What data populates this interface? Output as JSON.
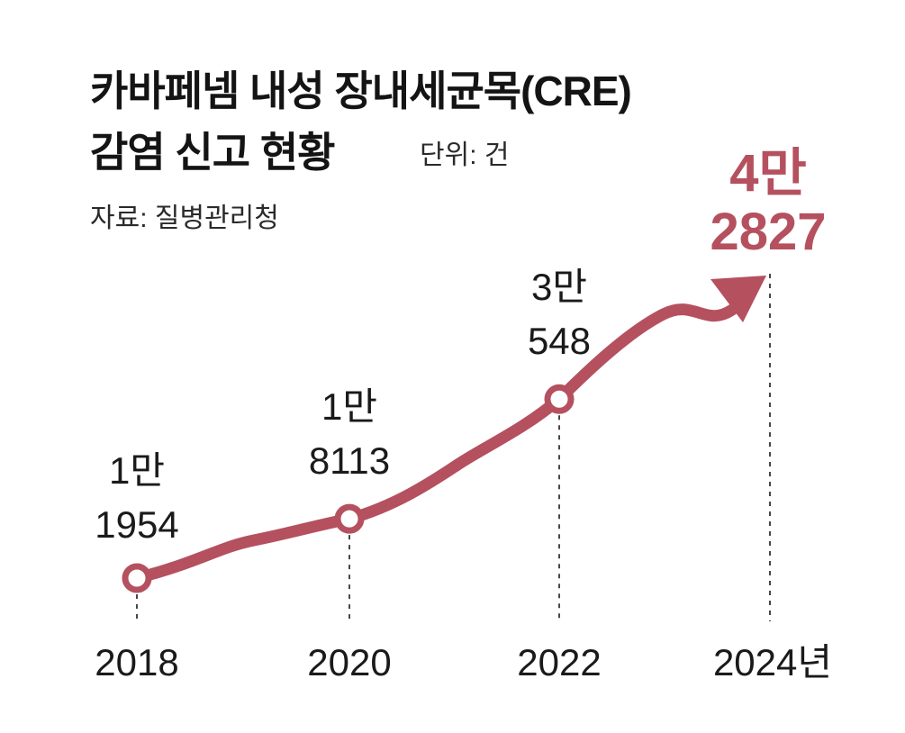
{
  "header": {
    "title_line1": "카바페넴 내성 장내세균목(CRE)",
    "title_line2": "감염 신고 현황",
    "unit": "단위: 건",
    "source": "자료: 질병관리청"
  },
  "colors": {
    "accent": "#b5505f",
    "text": "#1a1a1a"
  },
  "chart_data": {
    "type": "line",
    "title": "카바페넴 내성 장내세균목(CRE) 감염 신고 현황",
    "unit": "건",
    "source": "질병관리청",
    "x": [
      "2018",
      "2020",
      "2022",
      "2024년"
    ],
    "values": [
      11954,
      18113,
      30548,
      42827
    ],
    "labels": [
      {
        "line1": "1만",
        "line2": "1954"
      },
      {
        "line1": "1만",
        "line2": "8113"
      },
      {
        "line1": "3만",
        "line2": "548"
      },
      {
        "line1": "4만",
        "line2": "2827"
      }
    ],
    "highlight_last": true,
    "grid": false
  }
}
